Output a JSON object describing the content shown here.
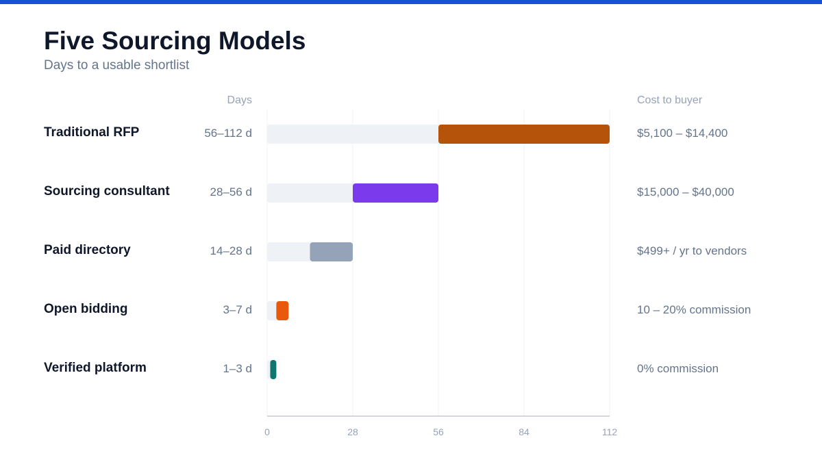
{
  "header": {
    "title": "Five Sourcing Models",
    "subtitle": "Days to a usable shortlist"
  },
  "colors": {
    "accent_bar": "#1d4ed8",
    "track": "#eef1f5",
    "gridline": "#eef0f4",
    "axis": "#d4d7e0",
    "label_text": "#0f172a",
    "muted_text": "#64748b",
    "axis_text": "#94a3b8"
  },
  "chart_data": {
    "type": "bar",
    "orientation": "horizontal-range",
    "title": "Five Sourcing Models",
    "subtitle": "Days to a usable shortlist",
    "days_column_label": "Days",
    "cost_column_label": "Cost to buyer",
    "xlim": [
      0,
      112
    ],
    "x_ticks": [
      0,
      28,
      56,
      84,
      112
    ],
    "grid": true,
    "rows": [
      {
        "label": "Traditional RFP",
        "range_label": "56–112 d",
        "min": 56,
        "max": 112,
        "cost": "$5,100 – $14,400",
        "color": "#b45309"
      },
      {
        "label": "Sourcing consultant",
        "range_label": "28–56 d",
        "min": 28,
        "max": 56,
        "cost": "$15,000 – $40,000",
        "color": "#7c3aed"
      },
      {
        "label": "Paid directory",
        "range_label": "14–28 d",
        "min": 14,
        "max": 28,
        "cost": "$499+ / yr to vendors",
        "color": "#94a3b8"
      },
      {
        "label": "Open bidding",
        "range_label": "3–7 d",
        "min": 3,
        "max": 7,
        "cost": "10 – 20% commission",
        "color": "#ea580c"
      },
      {
        "label": "Verified platform",
        "range_label": "1–3 d",
        "min": 1,
        "max": 3,
        "cost": "0% commission",
        "color": "#0f766e"
      }
    ]
  }
}
